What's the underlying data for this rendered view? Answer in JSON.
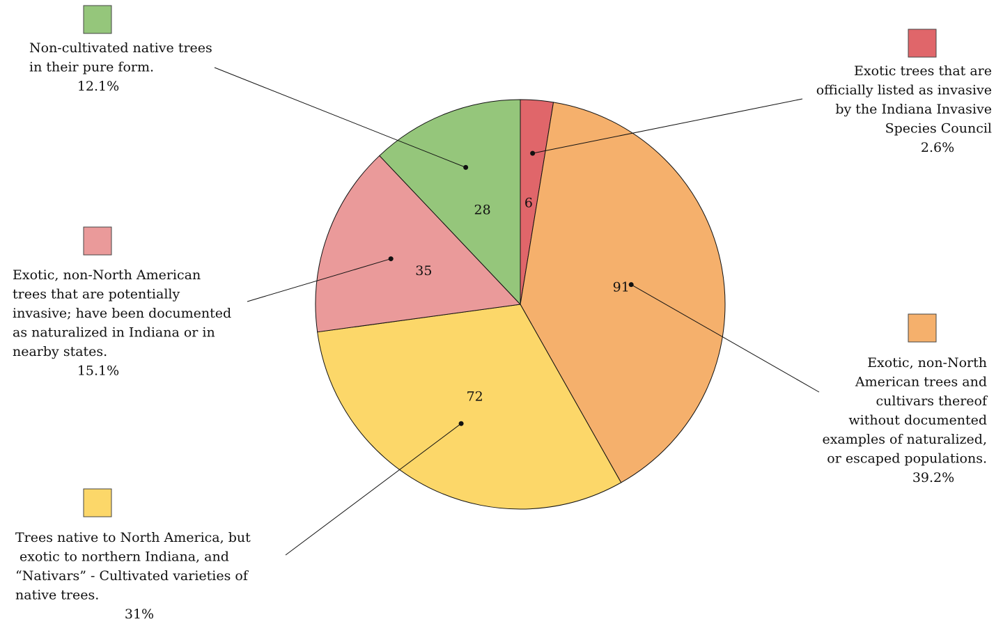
{
  "chart_data": {
    "type": "pie",
    "title": "",
    "slices": [
      {
        "key": "listed-invasive",
        "value": 6,
        "percent": "2.6%",
        "color": "#e0666a",
        "label_lines": [
          "Exotic trees that are",
          "officially listed as invasive",
          "by the Indiana Invasive",
          "Species Council"
        ]
      },
      {
        "key": "exotic-no-naturalized",
        "value": 91,
        "percent": "39.2%",
        "color": "#f5b06c",
        "label_lines": [
          "Exotic, non-North",
          "American trees and",
          "cultivars thereof",
          "without documented",
          "examples of naturalized,",
          "or escaped populations."
        ]
      },
      {
        "key": "nativars",
        "value": 72,
        "percent": "31%",
        "color": "#fcd769",
        "label_lines": [
          "Trees native to North America, but",
          " exotic to northern Indiana, and",
          "“Nativars” - Cultivated varieties of",
          "native trees."
        ]
      },
      {
        "key": "potentially-invasive",
        "value": 35,
        "percent": "15.1%",
        "color": "#ea9a9a",
        "label_lines": [
          "Exotic, non-North American",
          "trees that are potentially",
          "invasive; have been documented",
          "as naturalized in Indiana or in",
          "nearby states."
        ]
      },
      {
        "key": "pure-native",
        "value": 28,
        "percent": "12.1%",
        "color": "#95c67b",
        "label_lines": [
          "Non-cultivated native trees",
          "in their pure form."
        ]
      }
    ]
  }
}
